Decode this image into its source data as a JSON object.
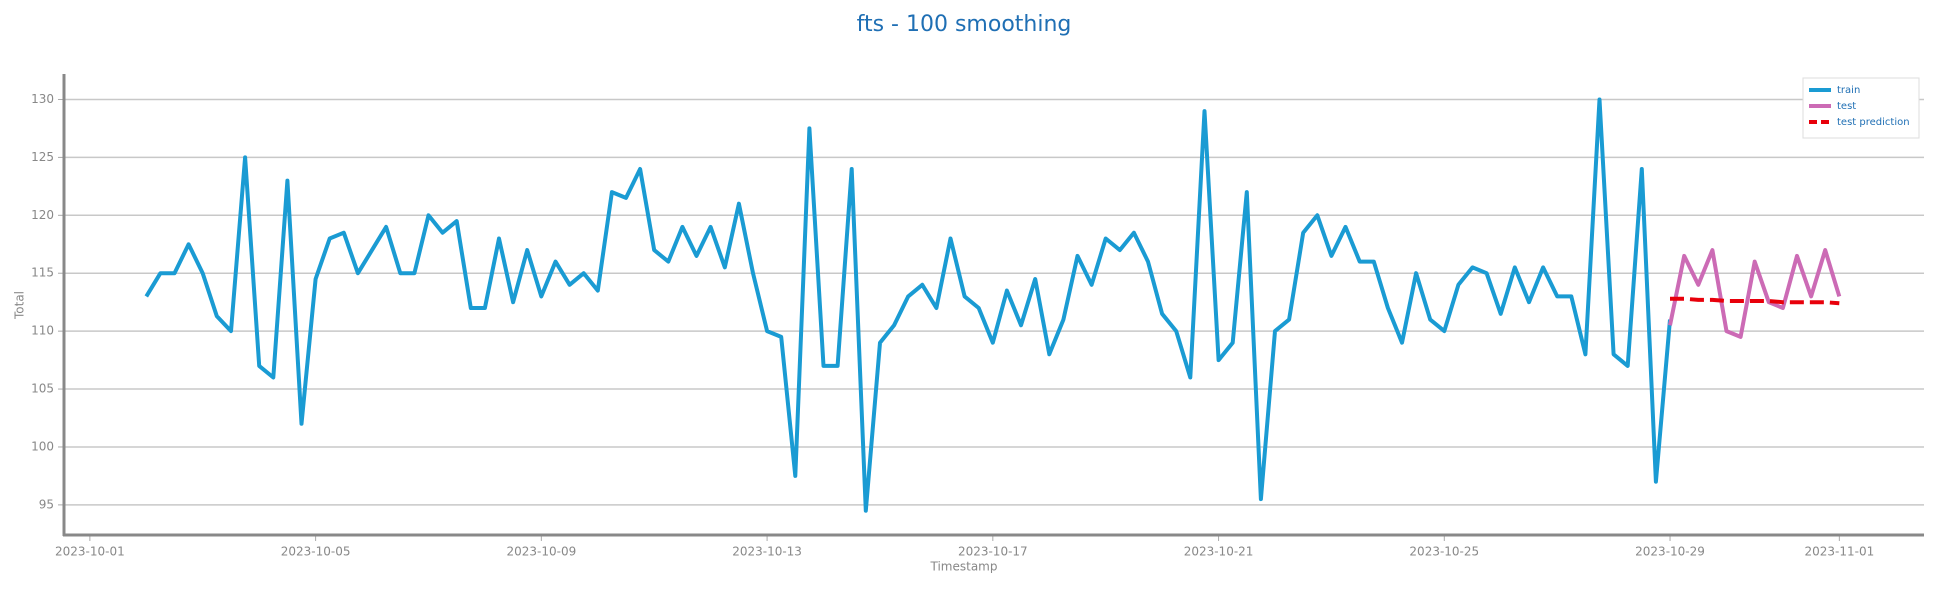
{
  "chart_data": {
    "type": "line",
    "title": "fts - 100 smoothing",
    "x_label": "Timestamp",
    "y_label": "Total",
    "xlim": [
      "2023-09-30 13:00",
      "2023-11-02 12:00"
    ],
    "xticks": [
      "2023-10-01",
      "2023-10-05",
      "2023-10-09",
      "2023-10-13",
      "2023-10-17",
      "2023-10-21",
      "2023-10-25",
      "2023-10-29",
      "2023-11-01"
    ],
    "ylim": [
      92.4,
      132.2
    ],
    "yticks": [
      95,
      100,
      105,
      110,
      115,
      120,
      125,
      130
    ],
    "grid": true,
    "legend": "upper right",
    "series": [
      {
        "name": "train",
        "color": "#1a9bd3",
        "style": "solid",
        "x": [
          "2023-10-02 00:00",
          "2023-10-02 06:00",
          "2023-10-02 12:00",
          "2023-10-02 18:00",
          "2023-10-03 00:00",
          "2023-10-03 06:00",
          "2023-10-03 12:00",
          "2023-10-03 18:00",
          "2023-10-04 00:00",
          "2023-10-04 06:00",
          "2023-10-04 12:00",
          "2023-10-04 18:00",
          "2023-10-05 00:00",
          "2023-10-05 06:00",
          "2023-10-05 12:00",
          "2023-10-05 18:00",
          "2023-10-06 00:00",
          "2023-10-06 06:00",
          "2023-10-06 12:00",
          "2023-10-06 18:00",
          "2023-10-07 00:00",
          "2023-10-07 06:00",
          "2023-10-07 12:00",
          "2023-10-07 18:00",
          "2023-10-08 00:00",
          "2023-10-08 06:00",
          "2023-10-08 12:00",
          "2023-10-08 18:00",
          "2023-10-09 00:00",
          "2023-10-09 06:00",
          "2023-10-09 12:00",
          "2023-10-09 18:00",
          "2023-10-10 00:00",
          "2023-10-10 06:00",
          "2023-10-10 12:00",
          "2023-10-10 18:00",
          "2023-10-11 00:00",
          "2023-10-11 06:00",
          "2023-10-11 12:00",
          "2023-10-11 18:00",
          "2023-10-12 00:00",
          "2023-10-12 06:00",
          "2023-10-12 12:00",
          "2023-10-12 18:00",
          "2023-10-13 00:00",
          "2023-10-13 06:00",
          "2023-10-13 12:00",
          "2023-10-13 18:00",
          "2023-10-14 00:00",
          "2023-10-14 06:00",
          "2023-10-14 12:00",
          "2023-10-14 18:00",
          "2023-10-15 00:00",
          "2023-10-15 06:00",
          "2023-10-15 12:00",
          "2023-10-15 18:00",
          "2023-10-16 00:00",
          "2023-10-16 06:00",
          "2023-10-16 12:00",
          "2023-10-16 18:00",
          "2023-10-17 00:00",
          "2023-10-17 06:00",
          "2023-10-17 12:00",
          "2023-10-17 18:00",
          "2023-10-18 00:00",
          "2023-10-18 06:00",
          "2023-10-18 12:00",
          "2023-10-18 18:00",
          "2023-10-19 00:00",
          "2023-10-19 06:00",
          "2023-10-19 12:00",
          "2023-10-19 18:00",
          "2023-10-20 00:00",
          "2023-10-20 06:00",
          "2023-10-20 12:00",
          "2023-10-20 18:00",
          "2023-10-21 00:00",
          "2023-10-21 06:00",
          "2023-10-21 12:00",
          "2023-10-21 18:00",
          "2023-10-22 00:00",
          "2023-10-22 06:00",
          "2023-10-22 12:00",
          "2023-10-22 18:00",
          "2023-10-23 00:00",
          "2023-10-23 06:00",
          "2023-10-23 12:00",
          "2023-10-23 18:00",
          "2023-10-24 00:00",
          "2023-10-24 06:00",
          "2023-10-24 12:00",
          "2023-10-24 18:00",
          "2023-10-25 00:00",
          "2023-10-25 06:00",
          "2023-10-25 12:00",
          "2023-10-25 18:00",
          "2023-10-26 00:00",
          "2023-10-26 06:00",
          "2023-10-26 12:00",
          "2023-10-26 18:00",
          "2023-10-27 00:00",
          "2023-10-27 06:00",
          "2023-10-27 12:00",
          "2023-10-27 18:00",
          "2023-10-28 00:00",
          "2023-10-28 06:00",
          "2023-10-28 12:00",
          "2023-10-28 18:00",
          "2023-10-29 00:00"
        ],
        "values": [
          113,
          115,
          115,
          117.5,
          115,
          111.3,
          110,
          125,
          107,
          106,
          123,
          102,
          114.5,
          118,
          118.5,
          115,
          117,
          119,
          115,
          115,
          120,
          118.5,
          119.5,
          112,
          112,
          118,
          112.5,
          117,
          113,
          116,
          114,
          115,
          113.5,
          122,
          121.5,
          124,
          117,
          116,
          119,
          116.5,
          119,
          115.5,
          121,
          115,
          110,
          109.5,
          97.5,
          127.5,
          107,
          107,
          124,
          94.5,
          109,
          110.5,
          113,
          114,
          112,
          118,
          113,
          112,
          109,
          113.5,
          110.5,
          114.5,
          108,
          111,
          116.5,
          114,
          118,
          117,
          118.5,
          116,
          111.5,
          110,
          106,
          129,
          107.5,
          109,
          122,
          95.5,
          110,
          111,
          118.5,
          120,
          116.5,
          119,
          116,
          116,
          112,
          109,
          115,
          111,
          110,
          114,
          115.5,
          115,
          111.5,
          115.5,
          112.5,
          115.5,
          113,
          113,
          108,
          130,
          108,
          107,
          124,
          97,
          111
        ]
      },
      {
        "name": "test",
        "color": "#cc6bb5",
        "style": "solid",
        "x": [
          "2023-10-29 00:00",
          "2023-10-29 06:00",
          "2023-10-29 12:00",
          "2023-10-29 18:00",
          "2023-10-30 00:00",
          "2023-10-30 06:00",
          "2023-10-30 12:00",
          "2023-10-30 18:00",
          "2023-10-31 00:00",
          "2023-10-31 06:00",
          "2023-10-31 12:00",
          "2023-10-31 18:00",
          "2023-11-01 00:00"
        ],
        "values": [
          110.5,
          116.5,
          114,
          117,
          110,
          109.5,
          116,
          112.5,
          112,
          116.5,
          113,
          117,
          113
        ]
      },
      {
        "name": "test prediction",
        "color": "#e8000b",
        "style": "dashed",
        "x": [
          "2023-10-29 00:00",
          "2023-10-29 06:00",
          "2023-10-29 12:00",
          "2023-10-29 18:00",
          "2023-10-30 00:00",
          "2023-10-30 06:00",
          "2023-10-30 12:00",
          "2023-10-30 18:00",
          "2023-10-31 00:00",
          "2023-10-31 06:00",
          "2023-10-31 12:00",
          "2023-10-31 18:00",
          "2023-11-01 00:00"
        ],
        "values": [
          112.8,
          112.8,
          112.7,
          112.7,
          112.6,
          112.6,
          112.6,
          112.6,
          112.5,
          112.5,
          112.5,
          112.5,
          112.4
        ]
      }
    ]
  }
}
